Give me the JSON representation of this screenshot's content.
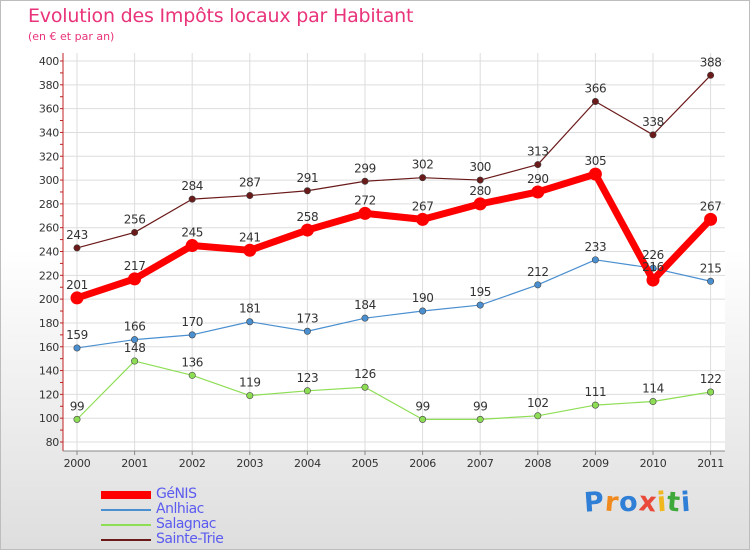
{
  "title": "Evolution des Impôts locaux par Habitant",
  "subtitle": "(en € et par an)",
  "logo_text": "Proxiti",
  "chart_data": {
    "type": "line",
    "x": [
      "2000",
      "2001",
      "2002",
      "2003",
      "2004",
      "2005",
      "2006",
      "2007",
      "2008",
      "2009",
      "2010",
      "2011"
    ],
    "ylim": [
      80,
      400
    ],
    "yticks": [
      80,
      100,
      120,
      140,
      160,
      180,
      200,
      220,
      240,
      260,
      280,
      300,
      320,
      340,
      360,
      380,
      400
    ],
    "grid": true,
    "legend_position": "bottom-left",
    "series": [
      {
        "name": "GéNIS",
        "color": "#ff0000",
        "values": [
          201,
          217,
          245,
          241,
          258,
          272,
          267,
          280,
          290,
          305,
          216,
          267
        ]
      },
      {
        "name": "Anlhiac",
        "color": "#4a8fd0",
        "values": [
          159,
          166,
          170,
          181,
          173,
          184,
          190,
          195,
          212,
          233,
          226,
          215
        ]
      },
      {
        "name": "Salagnac",
        "color": "#8ede55",
        "values": [
          99,
          148,
          136,
          119,
          123,
          126,
          99,
          99,
          102,
          111,
          114,
          122
        ]
      },
      {
        "name": "Sainte-Trie",
        "color": "#6b1a1a",
        "values": [
          243,
          256,
          284,
          287,
          291,
          299,
          302,
          300,
          313,
          366,
          338,
          388
        ]
      }
    ]
  }
}
